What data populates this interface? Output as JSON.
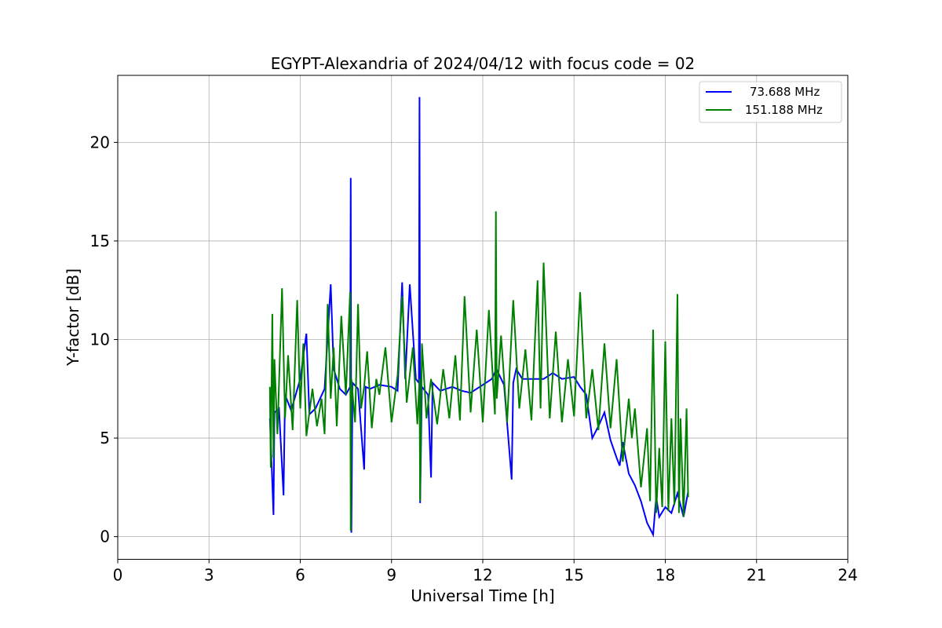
{
  "chart_data": {
    "type": "line",
    "title": "EGYPT-Alexandria of 2024/04/12 with focus code = 02",
    "xlabel": "Universal Time [h]",
    "ylabel": "Y-factor [dB]",
    "xlim": [
      0,
      24
    ],
    "ylim": [
      -1.15,
      23.4
    ],
    "xticks": [
      0,
      3,
      6,
      9,
      12,
      15,
      18,
      21,
      24
    ],
    "yticks": [
      0,
      5,
      10,
      15,
      20
    ],
    "grid": true,
    "legend_position": "top-right",
    "series": [
      {
        "name": "73.688 MHz",
        "color": "#0000ff",
        "x": [
          5.0,
          5.05,
          5.12,
          5.15,
          5.3,
          5.45,
          5.5,
          5.7,
          6.0,
          6.2,
          6.3,
          6.5,
          6.8,
          7.0,
          7.1,
          7.3,
          7.5,
          7.64,
          7.66,
          7.68,
          7.72,
          7.9,
          8.1,
          8.15,
          8.3,
          8.6,
          9.0,
          9.2,
          9.35,
          9.45,
          9.6,
          9.8,
          9.9,
          9.92,
          9.94,
          10.0,
          10.2,
          10.3,
          10.35,
          10.6,
          11.0,
          11.3,
          11.6,
          12.0,
          12.3,
          12.45,
          12.7,
          12.95,
          13.0,
          13.1,
          13.3,
          13.6,
          14.0,
          14.3,
          14.6,
          15.0,
          15.2,
          15.4,
          15.6,
          15.8,
          16.0,
          16.2,
          16.4,
          16.5,
          16.6,
          16.8,
          17.0,
          17.2,
          17.4,
          17.6,
          17.7,
          17.8,
          18.0,
          18.2,
          18.4,
          18.6,
          18.75
        ],
        "y": [
          6.0,
          4.0,
          1.1,
          6.3,
          6.5,
          2.1,
          7.2,
          6.4,
          8.0,
          10.3,
          6.2,
          6.5,
          7.5,
          12.8,
          8.5,
          7.5,
          7.2,
          7.6,
          18.2,
          0.2,
          7.8,
          7.5,
          3.4,
          7.6,
          7.5,
          7.7,
          7.6,
          7.4,
          12.9,
          8.0,
          12.8,
          8.0,
          7.8,
          22.3,
          1.7,
          7.6,
          7.2,
          3.0,
          7.8,
          7.4,
          7.6,
          7.4,
          7.3,
          7.7,
          8.0,
          8.5,
          7.7,
          2.9,
          7.8,
          8.5,
          8.0,
          8.0,
          8.0,
          8.3,
          8.0,
          8.1,
          7.6,
          7.2,
          5.0,
          5.6,
          6.3,
          4.9,
          4.0,
          3.6,
          4.8,
          3.2,
          2.6,
          1.8,
          0.7,
          0.1,
          2.0,
          1.0,
          1.5,
          1.2,
          2.2,
          1.0,
          2.3
        ]
      },
      {
        "name": "151.188 MHz",
        "color": "#008000",
        "x": [
          5.0,
          5.03,
          5.08,
          5.12,
          5.15,
          5.25,
          5.4,
          5.5,
          5.6,
          5.75,
          5.9,
          6.0,
          6.1,
          6.2,
          6.4,
          6.55,
          6.7,
          6.8,
          6.9,
          7.0,
          7.1,
          7.2,
          7.35,
          7.5,
          7.64,
          7.66,
          7.68,
          7.8,
          7.9,
          8.0,
          8.1,
          8.2,
          8.35,
          8.5,
          8.6,
          8.8,
          9.0,
          9.2,
          9.35,
          9.5,
          9.7,
          9.85,
          9.92,
          9.94,
          10.0,
          10.15,
          10.3,
          10.5,
          10.7,
          10.9,
          11.1,
          11.25,
          11.4,
          11.6,
          11.8,
          12.0,
          12.2,
          12.4,
          12.43,
          12.46,
          12.6,
          12.8,
          13.0,
          13.2,
          13.4,
          13.6,
          13.8,
          13.9,
          14.0,
          14.2,
          14.4,
          14.6,
          14.8,
          15.0,
          15.2,
          15.4,
          15.6,
          15.8,
          16.0,
          16.2,
          16.4,
          16.6,
          16.8,
          16.9,
          17.0,
          17.2,
          17.4,
          17.5,
          17.6,
          17.7,
          17.8,
          17.9,
          18.0,
          18.1,
          18.2,
          18.3,
          18.4,
          18.45,
          18.5,
          18.6,
          18.7,
          18.75
        ],
        "y": [
          7.6,
          3.5,
          11.3,
          4.0,
          9.0,
          5.2,
          12.6,
          6.0,
          9.2,
          5.4,
          12.0,
          6.5,
          9.8,
          5.1,
          7.5,
          5.6,
          7.0,
          5.2,
          11.8,
          7.0,
          9.6,
          5.6,
          11.2,
          7.2,
          12.4,
          0.3,
          8.0,
          5.8,
          11.8,
          6.5,
          7.6,
          9.4,
          5.5,
          8.0,
          7.2,
          9.6,
          5.8,
          8.2,
          12.2,
          6.8,
          9.6,
          5.7,
          8.0,
          1.8,
          9.8,
          6.0,
          8.0,
          5.7,
          8.5,
          6.0,
          9.2,
          5.9,
          12.2,
          6.3,
          10.5,
          5.8,
          11.5,
          6.2,
          16.5,
          7.0,
          10.2,
          5.8,
          12.0,
          6.5,
          9.5,
          5.9,
          13.0,
          6.5,
          13.9,
          6.0,
          10.4,
          5.8,
          9.0,
          6.1,
          12.4,
          6.0,
          8.5,
          5.4,
          9.8,
          5.5,
          9.0,
          3.8,
          7.0,
          5.0,
          6.5,
          2.5,
          5.5,
          1.8,
          10.5,
          1.2,
          4.5,
          1.5,
          9.9,
          1.3,
          6.0,
          1.6,
          12.3,
          1.2,
          6.0,
          1.0,
          6.5,
          2.0
        ]
      }
    ]
  }
}
